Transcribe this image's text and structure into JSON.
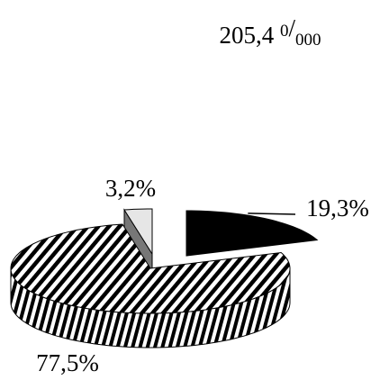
{
  "chart_data": {
    "type": "pie3d",
    "title_parts": [
      "205,4 ",
      "0",
      "/",
      "000"
    ],
    "categories": [
      null,
      null,
      null
    ],
    "values": [
      19.3,
      77.5,
      3.2
    ],
    "value_labels": [
      "19,3%",
      "77,5%",
      "3,2%"
    ],
    "colors": [
      "#000000",
      "#ffffff",
      "#e6e6e6"
    ],
    "hatched": [
      false,
      true,
      false
    ]
  }
}
